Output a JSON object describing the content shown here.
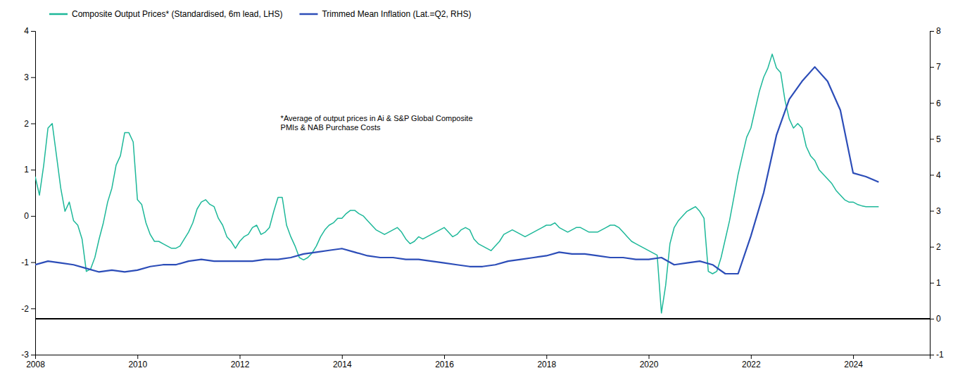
{
  "chart_data": {
    "type": "line",
    "xlim": [
      2008,
      2025.5
    ],
    "xticks": [
      2008,
      2010,
      2012,
      2014,
      2016,
      2018,
      2020,
      2022,
      2024
    ],
    "ylim": [
      -3,
      4
    ],
    "yticks": [
      -3,
      -2,
      -1,
      0,
      1,
      2,
      3,
      4
    ],
    "y2lim": [
      -1,
      8
    ],
    "y2ticks": [
      -1,
      0,
      1,
      2,
      3,
      4,
      5,
      6,
      7,
      8
    ],
    "grid": false,
    "legend": "upper left",
    "series": [
      {
        "name": "Composite Output Prices* (Standardised, 6m lead, LHS)",
        "color": "#1db899",
        "x": [
          2008.0,
          2008.083,
          2008.167,
          2008.25,
          2008.333,
          2008.417,
          2008.5,
          2008.583,
          2008.667,
          2008.75,
          2008.833,
          2008.917,
          2009.0,
          2009.083,
          2009.167,
          2009.25,
          2009.333,
          2009.417,
          2009.5,
          2009.583,
          2009.667,
          2009.75,
          2009.833,
          2009.917,
          2010.0,
          2010.083,
          2010.167,
          2010.25,
          2010.333,
          2010.417,
          2010.5,
          2010.583,
          2010.667,
          2010.75,
          2010.833,
          2010.917,
          2011.0,
          2011.083,
          2011.167,
          2011.25,
          2011.333,
          2011.417,
          2011.5,
          2011.583,
          2011.667,
          2011.75,
          2011.833,
          2011.917,
          2012.0,
          2012.083,
          2012.167,
          2012.25,
          2012.333,
          2012.417,
          2012.5,
          2012.583,
          2012.667,
          2012.75,
          2012.833,
          2012.917,
          2013.0,
          2013.083,
          2013.167,
          2013.25,
          2013.333,
          2013.417,
          2013.5,
          2013.583,
          2013.667,
          2013.75,
          2013.833,
          2013.917,
          2014.0,
          2014.083,
          2014.167,
          2014.25,
          2014.333,
          2014.417,
          2014.5,
          2014.583,
          2014.667,
          2014.75,
          2014.833,
          2014.917,
          2015.0,
          2015.083,
          2015.167,
          2015.25,
          2015.333,
          2015.417,
          2015.5,
          2015.583,
          2015.667,
          2015.75,
          2015.833,
          2015.917,
          2016.0,
          2016.083,
          2016.167,
          2016.25,
          2016.333,
          2016.417,
          2016.5,
          2016.583,
          2016.667,
          2016.75,
          2016.833,
          2016.917,
          2017.0,
          2017.083,
          2017.167,
          2017.25,
          2017.333,
          2017.417,
          2017.5,
          2017.583,
          2017.667,
          2017.75,
          2017.833,
          2017.917,
          2018.0,
          2018.083,
          2018.167,
          2018.25,
          2018.333,
          2018.417,
          2018.5,
          2018.583,
          2018.667,
          2018.75,
          2018.833,
          2018.917,
          2019.0,
          2019.083,
          2019.167,
          2019.25,
          2019.333,
          2019.417,
          2019.5,
          2019.583,
          2019.667,
          2019.75,
          2019.833,
          2019.917,
          2020.0,
          2020.083,
          2020.167,
          2020.25,
          2020.333,
          2020.417,
          2020.5,
          2020.583,
          2020.667,
          2020.75,
          2020.833,
          2020.917,
          2021.0,
          2021.083,
          2021.167,
          2021.25,
          2021.333,
          2021.417,
          2021.5,
          2021.583,
          2021.667,
          2021.75,
          2021.833,
          2021.917,
          2022.0,
          2022.083,
          2022.167,
          2022.25,
          2022.333,
          2022.417,
          2022.5,
          2022.583,
          2022.667,
          2022.75,
          2022.833,
          2022.917,
          2023.0,
          2023.083,
          2023.167,
          2023.25,
          2023.333,
          2023.417,
          2023.5,
          2023.583,
          2023.667,
          2023.75,
          2023.833,
          2023.917,
          2024.0,
          2024.083,
          2024.167,
          2024.25,
          2024.333,
          2024.417,
          2024.5
        ],
        "values": [
          0.85,
          0.45,
          1.1,
          1.9,
          2.0,
          1.3,
          0.6,
          0.1,
          0.3,
          -0.1,
          -0.2,
          -0.5,
          -1.2,
          -1.15,
          -0.9,
          -0.5,
          -0.15,
          0.3,
          0.6,
          1.1,
          1.3,
          1.8,
          1.8,
          1.6,
          0.35,
          0.25,
          -0.15,
          -0.4,
          -0.55,
          -0.55,
          -0.6,
          -0.65,
          -0.7,
          -0.7,
          -0.65,
          -0.5,
          -0.35,
          -0.15,
          0.15,
          0.3,
          0.35,
          0.25,
          0.2,
          -0.05,
          -0.2,
          -0.45,
          -0.55,
          -0.7,
          -0.55,
          -0.45,
          -0.4,
          -0.25,
          -0.2,
          -0.4,
          -0.35,
          -0.25,
          0.1,
          0.4,
          0.4,
          -0.2,
          -0.45,
          -0.65,
          -0.9,
          -0.95,
          -0.9,
          -0.8,
          -0.65,
          -0.45,
          -0.3,
          -0.2,
          -0.15,
          -0.05,
          -0.05,
          0.05,
          0.12,
          0.12,
          0.05,
          0.0,
          -0.1,
          -0.2,
          -0.3,
          -0.35,
          -0.4,
          -0.35,
          -0.3,
          -0.25,
          -0.35,
          -0.5,
          -0.6,
          -0.55,
          -0.45,
          -0.5,
          -0.45,
          -0.4,
          -0.35,
          -0.3,
          -0.25,
          -0.35,
          -0.45,
          -0.4,
          -0.3,
          -0.25,
          -0.3,
          -0.5,
          -0.6,
          -0.65,
          -0.7,
          -0.75,
          -0.65,
          -0.55,
          -0.4,
          -0.35,
          -0.3,
          -0.35,
          -0.4,
          -0.45,
          -0.4,
          -0.35,
          -0.3,
          -0.25,
          -0.2,
          -0.2,
          -0.15,
          -0.25,
          -0.3,
          -0.35,
          -0.3,
          -0.25,
          -0.25,
          -0.3,
          -0.35,
          -0.35,
          -0.35,
          -0.3,
          -0.25,
          -0.2,
          -0.2,
          -0.25,
          -0.35,
          -0.45,
          -0.55,
          -0.6,
          -0.65,
          -0.7,
          -0.75,
          -0.8,
          -0.85,
          -2.1,
          -1.5,
          -0.6,
          -0.25,
          -0.1,
          0.0,
          0.1,
          0.15,
          0.2,
          0.1,
          -0.05,
          -1.2,
          -1.25,
          -1.2,
          -0.9,
          -0.5,
          -0.1,
          0.4,
          0.9,
          1.3,
          1.7,
          1.9,
          2.3,
          2.7,
          3.0,
          3.2,
          3.5,
          3.2,
          3.1,
          2.5,
          2.1,
          1.9,
          2.0,
          1.9,
          1.5,
          1.3,
          1.2,
          1.0,
          0.9,
          0.8,
          0.7,
          0.55,
          0.45,
          0.35,
          0.3,
          0.3,
          0.25,
          0.22,
          0.2,
          0.2,
          0.2,
          0.2
        ]
      },
      {
        "name": "Trimmed Mean Inflation (Lat.=Q2, RHS)",
        "color": "#2c4db8",
        "axis": "y2",
        "x": [
          2008.0,
          2008.25,
          2008.5,
          2008.75,
          2009.0,
          2009.25,
          2009.5,
          2009.75,
          2010.0,
          2010.25,
          2010.5,
          2010.75,
          2011.0,
          2011.25,
          2011.5,
          2011.75,
          2012.0,
          2012.25,
          2012.5,
          2012.75,
          2013.0,
          2013.25,
          2013.5,
          2013.75,
          2014.0,
          2014.25,
          2014.5,
          2014.75,
          2015.0,
          2015.25,
          2015.5,
          2015.75,
          2016.0,
          2016.25,
          2016.5,
          2016.75,
          2017.0,
          2017.25,
          2017.5,
          2017.75,
          2018.0,
          2018.25,
          2018.5,
          2018.75,
          2019.0,
          2019.25,
          2019.5,
          2019.75,
          2020.0,
          2020.25,
          2020.5,
          2020.75,
          2021.0,
          2021.25,
          2021.5,
          2021.75,
          2022.0,
          2022.25,
          2022.5,
          2022.75,
          2023.0,
          2023.25,
          2023.5,
          2023.75,
          2024.0,
          2024.25,
          2024.5
        ],
        "values": [
          1.5,
          1.6,
          1.55,
          1.5,
          1.4,
          1.3,
          1.35,
          1.3,
          1.35,
          1.45,
          1.5,
          1.5,
          1.6,
          1.65,
          1.6,
          1.6,
          1.6,
          1.6,
          1.65,
          1.65,
          1.7,
          1.8,
          1.85,
          1.9,
          1.95,
          1.85,
          1.75,
          1.7,
          1.7,
          1.65,
          1.65,
          1.6,
          1.55,
          1.5,
          1.45,
          1.45,
          1.5,
          1.6,
          1.65,
          1.7,
          1.75,
          1.85,
          1.8,
          1.8,
          1.75,
          1.7,
          1.7,
          1.65,
          1.65,
          1.7,
          1.5,
          1.55,
          1.6,
          1.5,
          1.25,
          1.25,
          2.3,
          3.5,
          5.1,
          6.1,
          6.6,
          7.0,
          6.6,
          5.8,
          4.05,
          3.95,
          3.8
        ]
      }
    ],
    "hline": {
      "axis": "y2",
      "value": 0,
      "color": "#000000"
    },
    "annotations": [
      {
        "text": "*Average of output prices in Ai & S&P Global Composite\nPMIs & NAB Purchase Costs",
        "x": 2012.8,
        "y": 2.2
      }
    ]
  }
}
